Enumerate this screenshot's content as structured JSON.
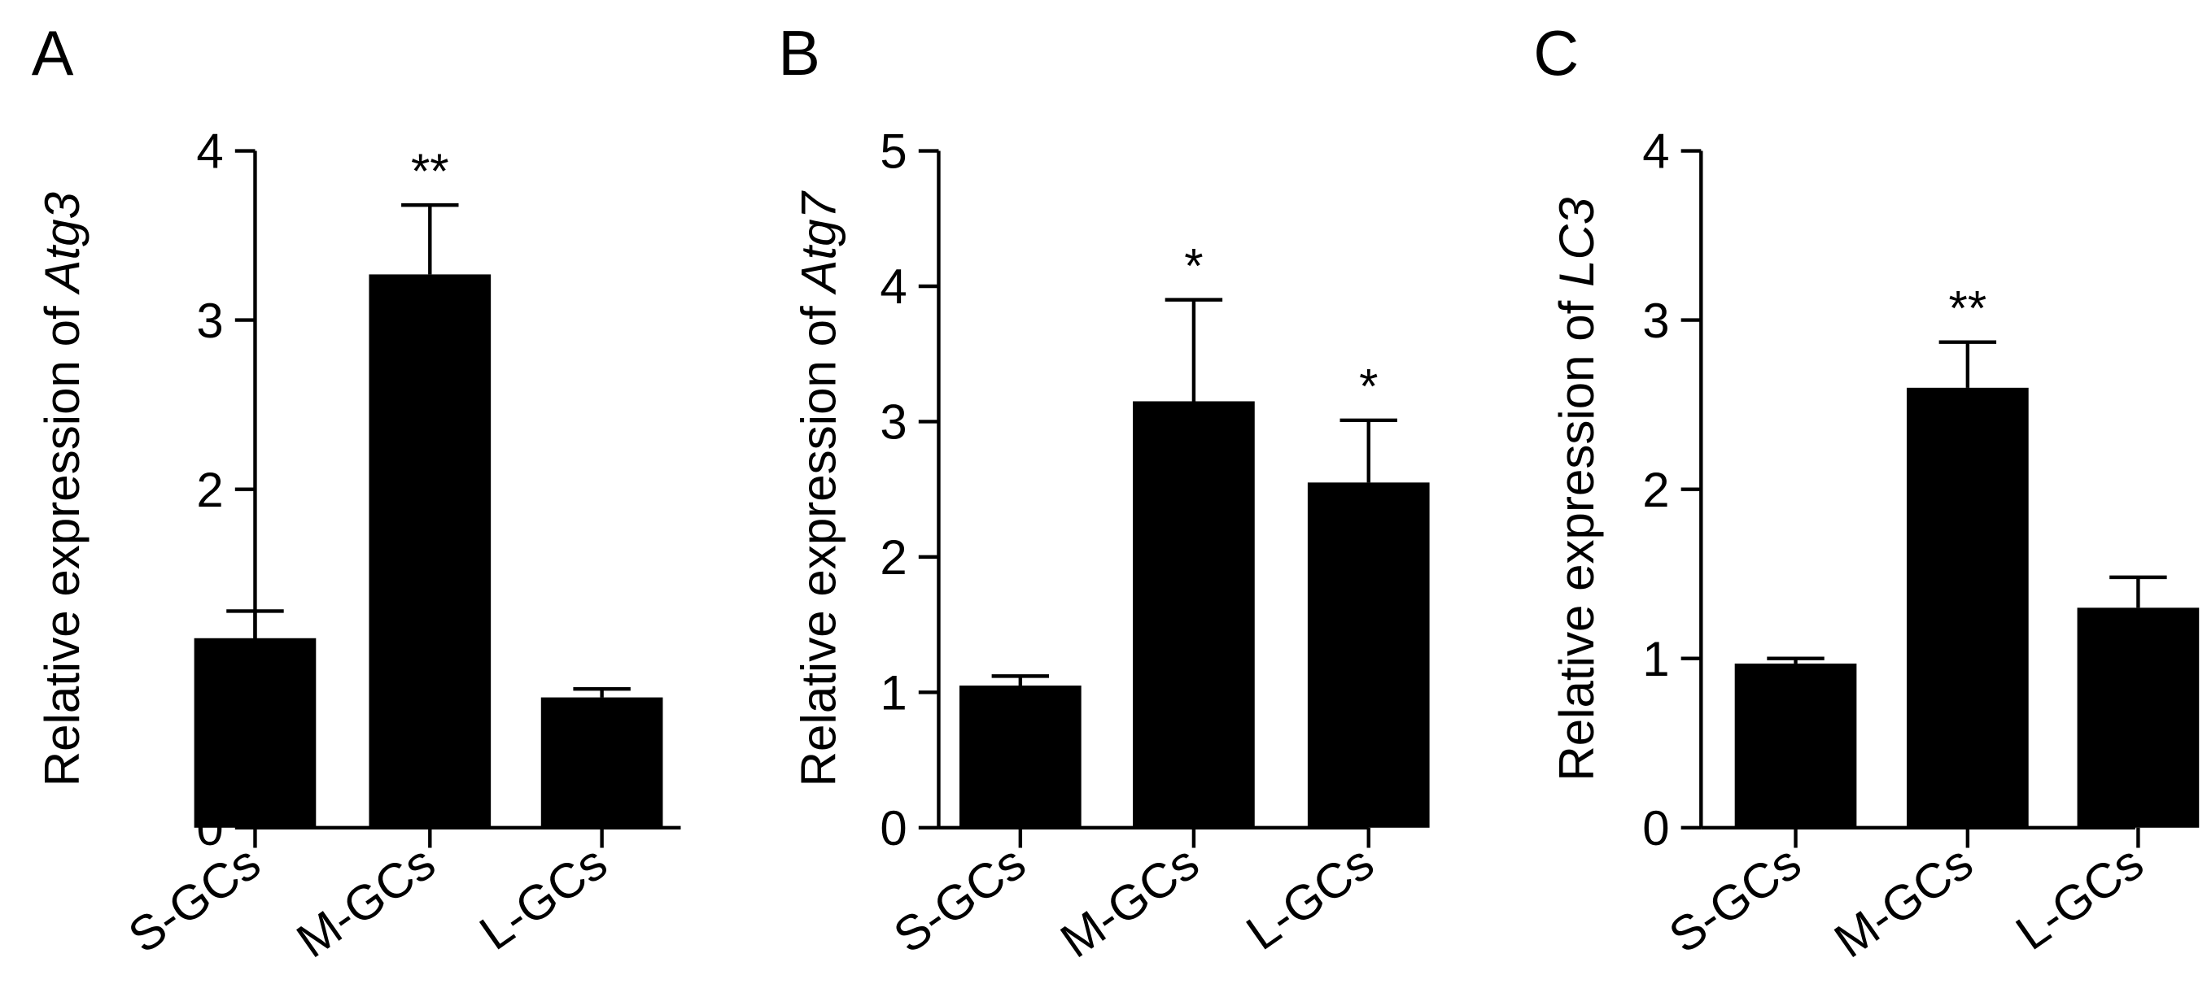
{
  "chart_data": [
    {
      "panel_label": "A",
      "type": "bar",
      "ylabel_prefix": "Relative expression of ",
      "ylabel_gene": "Atg3",
      "categories": [
        "S-GCs",
        "M-GCs",
        "L-GCs"
      ],
      "values": [
        1.12,
        3.27,
        0.77
      ],
      "errors": [
        0.16,
        0.41,
        0.05
      ],
      "annotations": [
        "",
        "**",
        ""
      ],
      "ylim": [
        0,
        4
      ],
      "yticks": [
        0,
        1,
        2,
        3,
        4
      ],
      "ytick_labels": [
        "0",
        "1",
        "2",
        "3",
        "4"
      ],
      "bar_color": "#000000"
    },
    {
      "panel_label": "B",
      "type": "bar",
      "ylabel_prefix": "Relative expression of ",
      "ylabel_gene": "Atg7",
      "categories": [
        "S-GCs",
        "M-GCs",
        "L-GCs"
      ],
      "values": [
        1.05,
        3.15,
        2.55
      ],
      "errors": [
        0.07,
        0.75,
        0.46
      ],
      "annotations": [
        "",
        "*",
        "*"
      ],
      "ylim": [
        0,
        5
      ],
      "yticks": [
        0,
        1,
        2,
        3,
        4,
        5
      ],
      "ytick_labels": [
        "0",
        "1",
        "2",
        "3",
        "4",
        "5"
      ],
      "bar_color": "#000000"
    },
    {
      "panel_label": "C",
      "type": "bar",
      "ylabel_prefix": "Relative expression of ",
      "ylabel_gene": "LC3",
      "categories": [
        "S-GCs",
        "M-GCs",
        "L-GCs"
      ],
      "values": [
        0.97,
        2.6,
        1.3
      ],
      "errors": [
        0.03,
        0.27,
        0.18
      ],
      "annotations": [
        "",
        "**",
        ""
      ],
      "ylim": [
        0,
        4
      ],
      "yticks": [
        0,
        1,
        2,
        3,
        4
      ],
      "ytick_labels": [
        "0",
        "1",
        "2",
        "3",
        "4"
      ],
      "bar_color": "#000000"
    }
  ]
}
